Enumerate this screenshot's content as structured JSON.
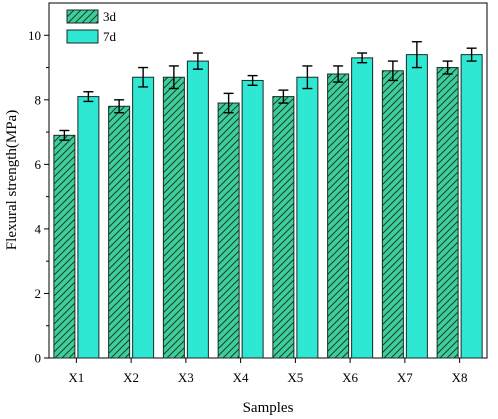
{
  "chart_data": {
    "type": "bar",
    "xlabel": "Samples",
    "ylabel": "Flexural strength(MPa)",
    "ylim": [
      0,
      11
    ],
    "yticks": [
      0,
      2,
      4,
      6,
      8,
      10
    ],
    "categories": [
      "X1",
      "X2",
      "X3",
      "X4",
      "X5",
      "X6",
      "X7",
      "X8"
    ],
    "series": [
      {
        "name": "3d",
        "values": [
          6.9,
          7.8,
          8.7,
          7.9,
          8.1,
          8.8,
          8.9,
          9.0
        ],
        "errors": [
          0.15,
          0.2,
          0.35,
          0.3,
          0.2,
          0.25,
          0.3,
          0.2
        ],
        "color": "#3ccf9a",
        "pattern": "diagonal-hatch"
      },
      {
        "name": "7d",
        "values": [
          8.1,
          8.7,
          9.2,
          8.6,
          8.7,
          9.3,
          9.4,
          9.4
        ],
        "errors": [
          0.15,
          0.3,
          0.25,
          0.15,
          0.35,
          0.15,
          0.4,
          0.2
        ],
        "color": "#2ee8d4",
        "pattern": "solid"
      }
    ],
    "legend_position": "top-left",
    "grid": false
  }
}
